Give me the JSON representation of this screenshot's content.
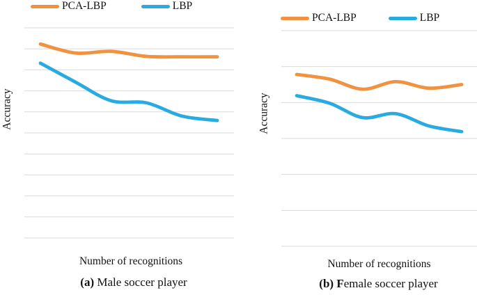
{
  "figure": {
    "background": "#FFFFFF",
    "text_color": "#111111"
  },
  "colors": {
    "pca_lbp_orange": "#F0923F",
    "lbp_blue": "#29ABE2",
    "gridline_gray": "#D9D9D9"
  },
  "chart_data": [
    {
      "type": "line",
      "title": "(a) Male soccer player",
      "caption": {
        "bold": "(a)",
        "rest": " Male soccer player"
      },
      "xlabel": "Number of recognitions",
      "ylabel": "Accuracy",
      "legend_position": "top",
      "x_tick_labels": [],
      "y_tick_labels": [],
      "ylim": [
        0,
        100
      ],
      "gridline_count": 11,
      "gridline_step": 10,
      "grid": "horizontal-only",
      "line_style": "smooth",
      "series": [
        {
          "name": "PCA-LBP",
          "color": "#F0923F",
          "values": [
            92.3,
            88.0,
            88.8,
            86.4,
            86.2,
            86.2
          ]
        },
        {
          "name": "LBP",
          "color": "#29ABE2",
          "values": [
            83.2,
            74.1,
            65.3,
            64.3,
            58.0,
            55.9
          ]
        }
      ]
    },
    {
      "type": "line",
      "title": "(b) Female soccer player",
      "caption": {
        "bold": "(b) F",
        "rest": "emale soccer player"
      },
      "xlabel": "Number of recognitions",
      "ylabel": "Accuracy",
      "legend_position": "top",
      "x_tick_labels": [],
      "y_tick_labels": [],
      "ylim": [
        40,
        100
      ],
      "gridline_count": 7,
      "gridline_step": 10,
      "grid": "horizontal-only",
      "line_style": "smooth",
      "series": [
        {
          "name": "PCA-LBP",
          "color": "#F0923F",
          "values": [
            87.8,
            86.5,
            83.7,
            85.8,
            84.0,
            85.0
          ]
        },
        {
          "name": "LBP",
          "color": "#29ABE2",
          "values": [
            81.9,
            79.8,
            75.8,
            76.9,
            73.5,
            71.9
          ]
        }
      ]
    }
  ]
}
